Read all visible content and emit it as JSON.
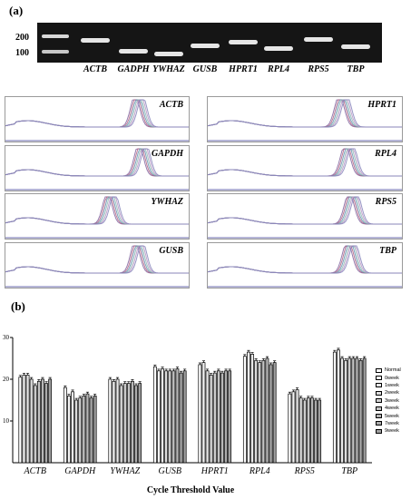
{
  "panel_a_label": "(a)",
  "panel_b_label": "(b)",
  "gel": {
    "markers": [
      "200",
      "100"
    ],
    "lanes": [
      "ACTB",
      "GADPH",
      "YWHAZ",
      "GUSB",
      "HPRT1",
      "RPL4",
      "RPS5",
      "TBP"
    ]
  },
  "melt_curves": {
    "left": [
      "ACTB",
      "GAPDH",
      "YWHAZ",
      "GUSB"
    ],
    "right": [
      "HPRT1",
      "RPL4",
      "RPS5",
      "TBP"
    ]
  },
  "chart_data": {
    "type": "bar",
    "categories": [
      "ACTB",
      "GAPDH",
      "YWHAZ",
      "GUSB",
      "HPRT1",
      "RPL4",
      "RPS5",
      "TBP"
    ],
    "xlabel": "Cycle Threshold Value",
    "ylim": [
      0,
      30
    ],
    "yticks": [
      "10",
      "20",
      "30"
    ],
    "legend_position": "right",
    "series": [
      {
        "name": "Normal",
        "values": [
          20.5,
          18.0,
          20.0,
          23.0,
          23.5,
          25.5,
          16.5,
          26.5
        ]
      },
      {
        "name": "0week",
        "values": [
          21.0,
          16.0,
          19.5,
          22.0,
          24.0,
          26.5,
          17.0,
          27.0
        ]
      },
      {
        "name": "1week",
        "values": [
          21.0,
          17.0,
          20.0,
          22.5,
          22.0,
          26.0,
          17.5,
          25.0
        ]
      },
      {
        "name": "2week",
        "values": [
          20.0,
          15.0,
          18.5,
          22.0,
          21.0,
          24.5,
          15.5,
          24.5
        ]
      },
      {
        "name": "3week",
        "values": [
          18.5,
          15.5,
          19.0,
          22.0,
          21.5,
          24.0,
          15.0,
          25.0
        ]
      },
      {
        "name": "4week",
        "values": [
          19.5,
          16.0,
          19.0,
          22.0,
          22.0,
          24.5,
          15.5,
          25.0
        ]
      },
      {
        "name": "5week",
        "values": [
          20.0,
          16.5,
          19.5,
          22.5,
          21.5,
          25.0,
          15.5,
          25.0
        ]
      },
      {
        "name": "7week",
        "values": [
          19.0,
          15.5,
          18.5,
          21.5,
          22.0,
          23.5,
          15.0,
          24.5
        ]
      },
      {
        "name": "9week",
        "values": [
          20.0,
          16.0,
          19.0,
          22.0,
          22.0,
          24.0,
          15.0,
          25.0
        ]
      }
    ]
  }
}
